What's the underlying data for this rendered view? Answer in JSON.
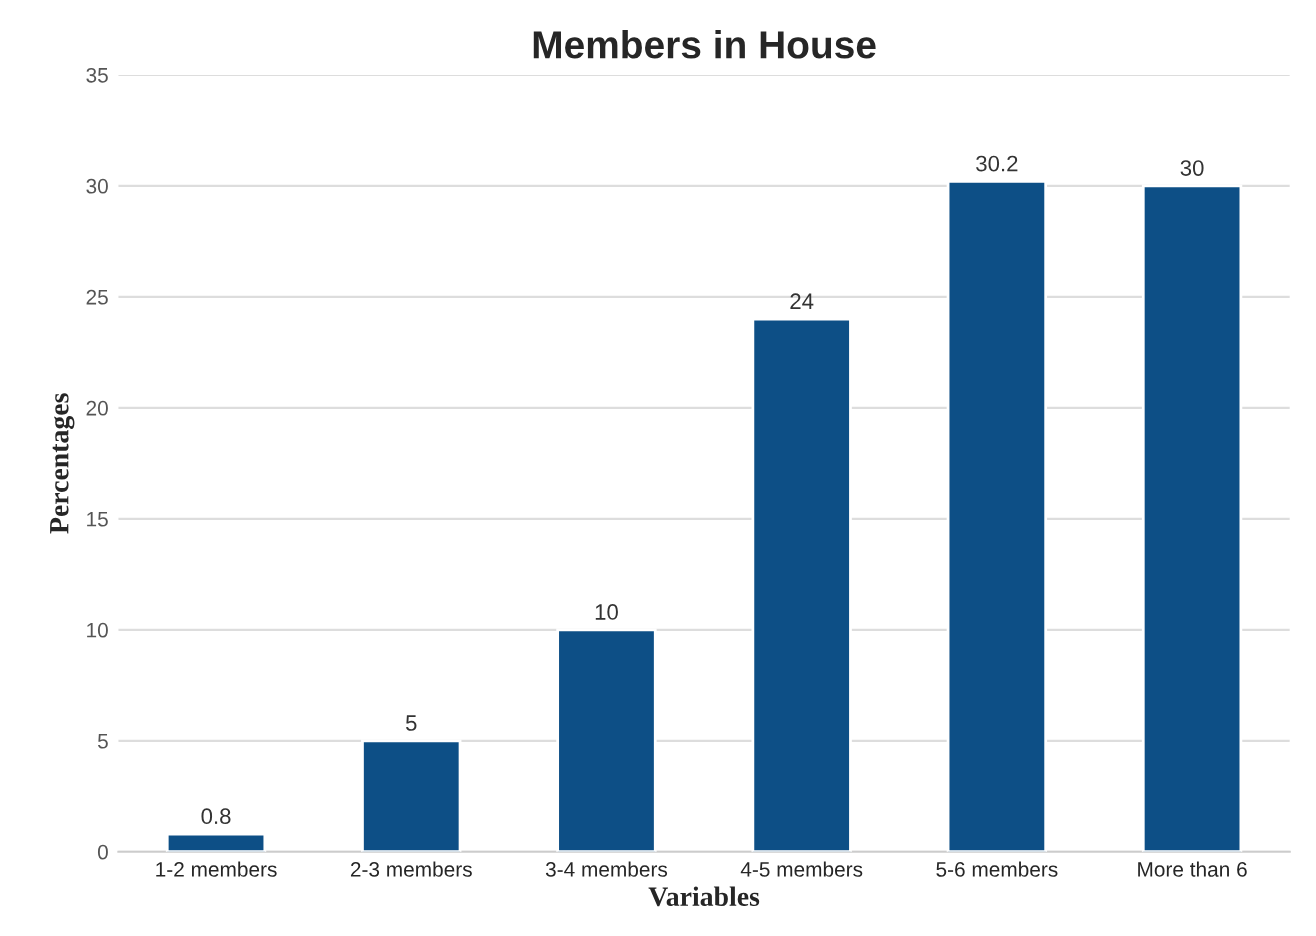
{
  "chart_data": {
    "type": "bar",
    "title": "Members in House",
    "xlabel": "Variables",
    "ylabel": "Percentages",
    "categories": [
      "1-2 members",
      "2-3 members",
      "3-4 members",
      "4-5 members",
      "5-6 members",
      "More than 6"
    ],
    "values": [
      0.8,
      5,
      10,
      24,
      30.2,
      30
    ],
    "color": "#0d4f86",
    "ylim": [
      0,
      35
    ],
    "yticks": [
      0,
      5,
      10,
      15,
      20,
      25,
      30,
      35
    ],
    "grid": "y",
    "data_labels": true
  }
}
